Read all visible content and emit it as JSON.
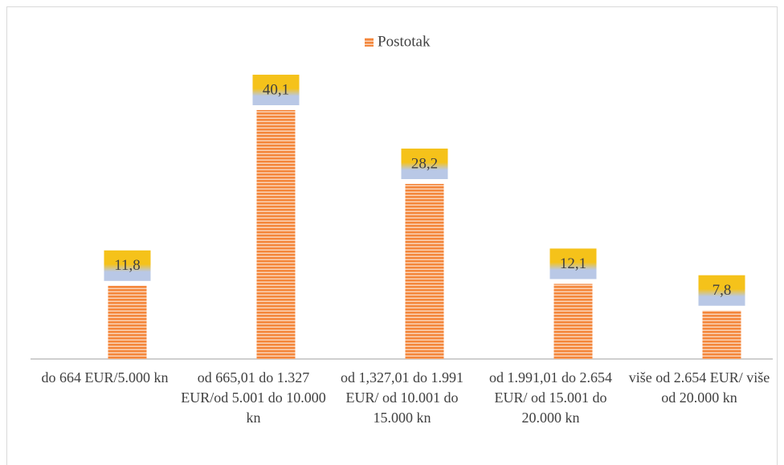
{
  "chart_data": {
    "type": "bar",
    "categories": [
      "do 664 EUR/5.000 kn",
      "od 665,01 do 1.327 EUR/od 5.001 do 10.000 kn",
      "od 1,327,01 do 1.991 EUR/ od 10.001 do 15.000 kn",
      "od 1.991,01 do 2.654 EUR/ od 15.001 do 20.000 kn",
      "više od 2.654 EUR/ više od 20.000 kn"
    ],
    "series": [
      {
        "name": "Postotak",
        "color": "#f4873c",
        "values": [
          11.8,
          40.1,
          28.2,
          12.1,
          7.8
        ],
        "value_labels": [
          "11,8",
          "40,1",
          "28,2",
          "12,1",
          "7,8"
        ]
      }
    ],
    "legend": "top"
  }
}
